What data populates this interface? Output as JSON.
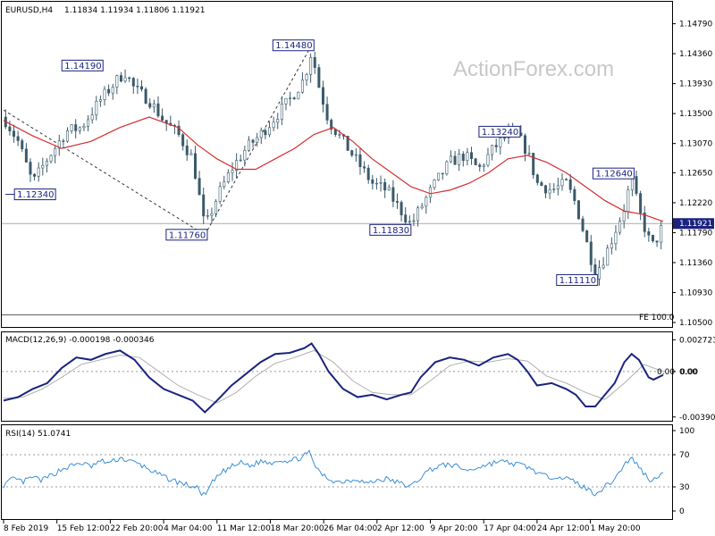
{
  "header": {
    "symbol": "EURUSD,H4",
    "ohlc": "1.11834 1.11934 1.11806 1.11921"
  },
  "watermark": "ActionForex.com",
  "colors": {
    "candle": "#3a5a6a",
    "ma": "#d32f2f",
    "macd": "#1a237e",
    "signal": "#b0b0b0",
    "rsi": "#3b8fd9",
    "label_border": "#1a237e",
    "label_text": "#1a237e"
  },
  "chart_data": [
    {
      "type": "candlestick",
      "title": "EURUSD,H4",
      "price_scale": [
        "1.14790",
        "1.14360",
        "1.13930",
        "1.13500",
        "1.13070",
        "1.12650",
        "1.12220",
        "1.11790",
        "1.11360",
        "1.10930",
        "1.10500"
      ],
      "ylim": [
        1.105,
        1.149
      ],
      "current_price": "1.11921",
      "current_value": 1.11921,
      "fe_label": "FE 100.0",
      "fe_value": 1.1061,
      "annotations": [
        {
          "text": "1.12340",
          "value": 1.1234,
          "x": 0.4,
          "align": "start"
        },
        {
          "text": "1.14190",
          "value": 1.1419,
          "x": 20.5,
          "align": "end"
        },
        {
          "text": "1.11760",
          "value": 1.1176,
          "x": 42,
          "align": "end"
        },
        {
          "text": "1.14480",
          "value": 1.1448,
          "x": 64,
          "align": "end"
        },
        {
          "text": "1.11830",
          "value": 1.1183,
          "x": 84,
          "align": "end"
        },
        {
          "text": "1.13240",
          "value": 1.1324,
          "x": 106.5,
          "align": "end"
        },
        {
          "text": "1.12640",
          "value": 1.1264,
          "x": 130,
          "align": "end"
        },
        {
          "text": "1.11110",
          "value": 1.1111,
          "x": 122.5,
          "align": "end"
        }
      ],
      "trend_lines": [
        {
          "from": [
            0,
            1.1355
          ],
          "to": [
            41.5,
            1.1176
          ]
        },
        {
          "from": [
            41.5,
            1.1176
          ],
          "to": [
            63.5,
            1.1448
          ]
        }
      ],
      "price_path": [
        [
          0,
          1.1345
        ],
        [
          3,
          1.131
        ],
        [
          6,
          1.125
        ],
        [
          9,
          1.1285
        ],
        [
          13,
          1.1325
        ],
        [
          16,
          1.133
        ],
        [
          20,
          1.137
        ],
        [
          23,
          1.1395
        ],
        [
          25,
          1.141
        ],
        [
          27,
          1.1385
        ],
        [
          30,
          1.137
        ],
        [
          33,
          1.134
        ],
        [
          36,
          1.132
        ],
        [
          39,
          1.1285
        ],
        [
          41.5,
          1.1185
        ],
        [
          44,
          1.123
        ],
        [
          47,
          1.127
        ],
        [
          50,
          1.13
        ],
        [
          53,
          1.132
        ],
        [
          56,
          1.1345
        ],
        [
          59,
          1.137
        ],
        [
          62,
          1.14
        ],
        [
          63.5,
          1.144
        ],
        [
          65,
          1.139
        ],
        [
          67,
          1.134
        ],
        [
          70,
          1.131
        ],
        [
          73,
          1.128
        ],
        [
          76,
          1.125
        ],
        [
          79,
          1.124
        ],
        [
          82,
          1.121
        ],
        [
          84,
          1.119
        ],
        [
          86,
          1.1215
        ],
        [
          89,
          1.125
        ],
        [
          92,
          1.128
        ],
        [
          95,
          1.129
        ],
        [
          98,
          1.127
        ],
        [
          101,
          1.13
        ],
        [
          104,
          1.132
        ],
        [
          106,
          1.1318
        ],
        [
          108,
          1.1295
        ],
        [
          110,
          1.125
        ],
        [
          113,
          1.124
        ],
        [
          116,
          1.125
        ],
        [
          118,
          1.122
        ],
        [
          120,
          1.117
        ],
        [
          122,
          1.112
        ],
        [
          124,
          1.1145
        ],
        [
          126,
          1.118
        ],
        [
          128,
          1.1215
        ],
        [
          129.5,
          1.1258
        ],
        [
          131,
          1.121
        ],
        [
          133,
          1.117
        ],
        [
          134,
          1.116
        ],
        [
          136,
          1.119
        ]
      ],
      "moving_average": [
        [
          0,
          1.134
        ],
        [
          6,
          1.1318
        ],
        [
          12,
          1.13
        ],
        [
          18,
          1.131
        ],
        [
          24,
          1.133
        ],
        [
          30,
          1.1345
        ],
        [
          36,
          1.133
        ],
        [
          40,
          1.1305
        ],
        [
          44,
          1.1285
        ],
        [
          48,
          1.127
        ],
        [
          52,
          1.127
        ],
        [
          56,
          1.1285
        ],
        [
          60,
          1.13
        ],
        [
          64,
          1.132
        ],
        [
          68,
          1.133
        ],
        [
          72,
          1.131
        ],
        [
          76,
          1.1285
        ],
        [
          80,
          1.1265
        ],
        [
          84,
          1.1245
        ],
        [
          88,
          1.1235
        ],
        [
          92,
          1.124
        ],
        [
          96,
          1.125
        ],
        [
          100,
          1.1265
        ],
        [
          104,
          1.1285
        ],
        [
          108,
          1.129
        ],
        [
          112,
          1.128
        ],
        [
          116,
          1.1265
        ],
        [
          120,
          1.1245
        ],
        [
          124,
          1.1225
        ],
        [
          128,
          1.121
        ],
        [
          132,
          1.1205
        ],
        [
          136,
          1.1195
        ]
      ],
      "x_labels": [
        {
          "text": "8 Feb 2019",
          "x": 0
        },
        {
          "text": "15 Feb 12:00",
          "x": 11
        },
        {
          "text": "22 Feb 20:00",
          "x": 22
        },
        {
          "text": "4 Mar 04:00",
          "x": 33
        },
        {
          "text": "11 Mar 12:00",
          "x": 44
        },
        {
          "text": "18 Mar 20:00",
          "x": 55
        },
        {
          "text": "26 Mar 04:00",
          "x": 66
        },
        {
          "text": "2 Apr 12:00",
          "x": 77
        },
        {
          "text": "9 Apr 20:00",
          "x": 88
        },
        {
          "text": "17 Apr 04:00",
          "x": 99
        },
        {
          "text": "24 Apr 12:00",
          "x": 110
        },
        {
          "text": "1 May 20:00",
          "x": 121
        }
      ],
      "xlim": [
        0,
        136
      ]
    },
    {
      "type": "line",
      "title": "MACD(12,26,9) -0.000198 -0.000346",
      "scale": [
        "0.002723",
        "0.00",
        "-0.003905"
      ],
      "ylim": [
        -0.004,
        0.0029
      ],
      "current_labels": [
        "0.00",
        "0.00"
      ],
      "series": [
        {
          "values": [
            [
              0,
              -0.0025
            ],
            [
              3,
              -0.0022
            ],
            [
              6,
              -0.0015
            ],
            [
              9,
              -0.001
            ],
            [
              12,
              0.0003
            ],
            [
              15,
              0.0012
            ],
            [
              18,
              0.001
            ],
            [
              21,
              0.0015
            ],
            [
              24,
              0.0018
            ],
            [
              27,
              0.001
            ],
            [
              30,
              -0.0005
            ],
            [
              33,
              -0.0015
            ],
            [
              36,
              -0.002
            ],
            [
              39,
              -0.0025
            ],
            [
              41.5,
              -0.0035
            ],
            [
              44,
              -0.0025
            ],
            [
              47,
              -0.0012
            ],
            [
              50,
              -0.0002
            ],
            [
              53,
              0.0008
            ],
            [
              56,
              0.0015
            ],
            [
              59,
              0.0016
            ],
            [
              62,
              0.002
            ],
            [
              63.5,
              0.0024
            ],
            [
              65,
              0.0015
            ],
            [
              67,
              0.0
            ],
            [
              70,
              -0.0015
            ],
            [
              73,
              -0.0022
            ],
            [
              76,
              -0.002
            ],
            [
              79,
              -0.0024
            ],
            [
              82,
              -0.002
            ],
            [
              84,
              -0.0018
            ],
            [
              86,
              -0.0005
            ],
            [
              89,
              0.0008
            ],
            [
              92,
              0.0012
            ],
            [
              95,
              0.001
            ],
            [
              98,
              0.0005
            ],
            [
              101,
              0.0012
            ],
            [
              104,
              0.0015
            ],
            [
              106,
              0.001
            ],
            [
              108,
              0.0
            ],
            [
              110,
              -0.0012
            ],
            [
              113,
              -0.001
            ],
            [
              116,
              -0.0015
            ],
            [
              118,
              -0.002
            ],
            [
              120,
              -0.003
            ],
            [
              122,
              -0.003
            ],
            [
              124,
              -0.002
            ],
            [
              126,
              -0.001
            ],
            [
              128,
              0.0008
            ],
            [
              129.5,
              0.0015
            ],
            [
              131,
              0.001
            ],
            [
              133,
              -0.0005
            ],
            [
              134,
              -0.0007
            ],
            [
              136,
              -0.0003
            ]
          ]
        },
        {
          "values": [
            [
              0,
              -0.0023
            ],
            [
              4,
              -0.0022
            ],
            [
              8,
              -0.0015
            ],
            [
              12,
              -0.0005
            ],
            [
              16,
              0.0006
            ],
            [
              20,
              0.001
            ],
            [
              24,
              0.0014
            ],
            [
              28,
              0.0012
            ],
            [
              32,
              0.0
            ],
            [
              36,
              -0.0012
            ],
            [
              40,
              -0.002
            ],
            [
              44,
              -0.0027
            ],
            [
              48,
              -0.0018
            ],
            [
              52,
              -0.0004
            ],
            [
              56,
              0.0007
            ],
            [
              60,
              0.0012
            ],
            [
              64,
              0.0018
            ],
            [
              68,
              0.0008
            ],
            [
              72,
              -0.0008
            ],
            [
              76,
              -0.0018
            ],
            [
              80,
              -0.002
            ],
            [
              84,
              -0.002
            ],
            [
              88,
              -0.0008
            ],
            [
              92,
              0.0005
            ],
            [
              96,
              0.0009
            ],
            [
              100,
              0.0008
            ],
            [
              104,
              0.0011
            ],
            [
              108,
              0.0009
            ],
            [
              112,
              -0.0004
            ],
            [
              116,
              -0.001
            ],
            [
              120,
              -0.0018
            ],
            [
              124,
              -0.0024
            ],
            [
              128,
              -0.001
            ],
            [
              132,
              0.0006
            ],
            [
              136,
              0.0
            ]
          ]
        }
      ],
      "xlim": [
        0,
        136
      ]
    },
    {
      "type": "line",
      "title": "RSI(14) 51.0741",
      "scale": [
        "100",
        "70",
        "30",
        "0"
      ],
      "ylim": [
        0,
        100
      ],
      "levels": [
        70,
        30
      ],
      "series": [
        {
          "values": [
            [
              0,
              32
            ],
            [
              2,
              40
            ],
            [
              4,
              36
            ],
            [
              6,
              42
            ],
            [
              8,
              38
            ],
            [
              10,
              45
            ],
            [
              12,
              52
            ],
            [
              14,
              56
            ],
            [
              16,
              60
            ],
            [
              18,
              55
            ],
            [
              20,
              62
            ],
            [
              22,
              60
            ],
            [
              24,
              66
            ],
            [
              26,
              62
            ],
            [
              28,
              58
            ],
            [
              30,
              52
            ],
            [
              32,
              45
            ],
            [
              34,
              40
            ],
            [
              36,
              36
            ],
            [
              38,
              32
            ],
            [
              40,
              28
            ],
            [
              41.5,
              18
            ],
            [
              43,
              35
            ],
            [
              45,
              48
            ],
            [
              47,
              55
            ],
            [
              49,
              60
            ],
            [
              51,
              56
            ],
            [
              53,
              62
            ],
            [
              55,
              60
            ],
            [
              57,
              64
            ],
            [
              59,
              62
            ],
            [
              61,
              66
            ],
            [
              63,
              72
            ],
            [
              64,
              60
            ],
            [
              65,
              48
            ],
            [
              67,
              40
            ],
            [
              69,
              36
            ],
            [
              71,
              38
            ],
            [
              73,
              40
            ],
            [
              75,
              34
            ],
            [
              77,
              38
            ],
            [
              79,
              40
            ],
            [
              81,
              36
            ],
            [
              83,
              32
            ],
            [
              84,
              30
            ],
            [
              86,
              42
            ],
            [
              88,
              52
            ],
            [
              90,
              56
            ],
            [
              92,
              58
            ],
            [
              94,
              54
            ],
            [
              96,
              50
            ],
            [
              98,
              55
            ],
            [
              100,
              58
            ],
            [
              102,
              62
            ],
            [
              104,
              60
            ],
            [
              106,
              58
            ],
            [
              108,
              55
            ],
            [
              110,
              48
            ],
            [
              112,
              42
            ],
            [
              114,
              44
            ],
            [
              116,
              40
            ],
            [
              118,
              36
            ],
            [
              120,
              28
            ],
            [
              122,
              22
            ],
            [
              124,
              30
            ],
            [
              126,
              40
            ],
            [
              128,
              58
            ],
            [
              129.5,
              66
            ],
            [
              131,
              55
            ],
            [
              133,
              40
            ],
            [
              134,
              38
            ],
            [
              136,
              51
            ]
          ]
        }
      ],
      "xlim": [
        0,
        136
      ]
    }
  ]
}
